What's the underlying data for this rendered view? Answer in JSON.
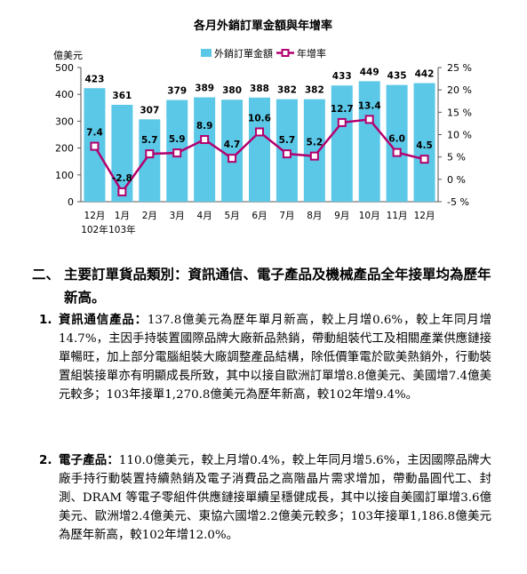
{
  "chart_data": {
    "type": "bar+line",
    "title": "各月外銷訂單金額與年增率",
    "y_left_unit": "億美元",
    "legend": [
      {
        "name": "外銷訂單金額",
        "type": "bar",
        "color": "#5bc8e8"
      },
      {
        "name": "年增率",
        "type": "line",
        "color": "#b3006e"
      }
    ],
    "legend_position": "top",
    "categories": [
      "12月",
      "1月",
      "2月",
      "3月",
      "4月",
      "5月",
      "6月",
      "7月",
      "8月",
      "9月",
      "10月",
      "11月",
      "12月"
    ],
    "category_years": [
      {
        "index": 0,
        "label": "102年"
      },
      {
        "index": 1,
        "label": "103年"
      }
    ],
    "series": [
      {
        "name": "外銷訂單金額",
        "axis": "left",
        "values": [
          423,
          361,
          307,
          379,
          389,
          380,
          388,
          382,
          382,
          433,
          449,
          435,
          442
        ]
      },
      {
        "name": "年增率",
        "axis": "right",
        "values": [
          7.4,
          -2.8,
          5.7,
          5.9,
          8.9,
          4.7,
          10.6,
          5.7,
          5.2,
          12.7,
          13.4,
          6.0,
          4.5
        ]
      }
    ],
    "value_labels_bar": [
      "423",
      "361",
      "307",
      "379",
      "389",
      "380",
      "388",
      "382",
      "382",
      "433",
      "449",
      "435",
      "442"
    ],
    "value_labels_line": [
      "7.4",
      "-2.8",
      "5.7",
      "5.9",
      "8.9",
      "4.7",
      "10.6",
      "5.7",
      "5.2",
      "12.7",
      "13.4",
      "6.0",
      "4.5"
    ],
    "y_left": {
      "min": 0,
      "max": 500,
      "ticks": [
        "0",
        "100",
        "200",
        "300",
        "400",
        "500"
      ]
    },
    "y_right": {
      "min": -5,
      "max": 25,
      "ticks": [
        "-5 %",
        "0 %",
        "5 %",
        "10 %",
        "15 %",
        "20 %",
        "25 %"
      ]
    },
    "grid": false
  },
  "section": {
    "number": "二、",
    "title": "主要訂單貨品類別：資訊通信、電子產品及機械產品全年接單均為歷年新高。"
  },
  "items": [
    {
      "number": "1.",
      "label": "資訊通信產品：",
      "text": "137.8億美元為歷年單月新高，較上月增0.6%，較上年同月增14.7%，主因手持裝置國際品牌大廠新品熱銷，帶動組裝代工及相關產業供應鏈接單暢旺，加上部分電腦組裝大廠調整產品結構，除低價筆電於歐美熱銷外，行動裝置組裝接單亦有明顯成長所致，其中以接自歐洲訂單增8.8億美元、美國增7.4億美元較多；103年接單1,270.8億美元為歷年新高，較102年增9.4%。"
    },
    {
      "number": "2.",
      "label": "電子產品：",
      "text": "110.0億美元，較上月增0.4%，較上年同月增5.6%，主因國際品牌大廠手持行動裝置持續熱銷及電子消費品之高階晶片需求增加，帶動晶圓代工、封測、DRAM 等電子零組件供應鏈接單續呈穩健成長，其中以接自美國訂單增3.6億美元、歐洲增2.4億美元、東協六國增2.2億美元較多；103年接單1,186.8億美元為歷年新高，較102年增12.0%。"
    }
  ]
}
